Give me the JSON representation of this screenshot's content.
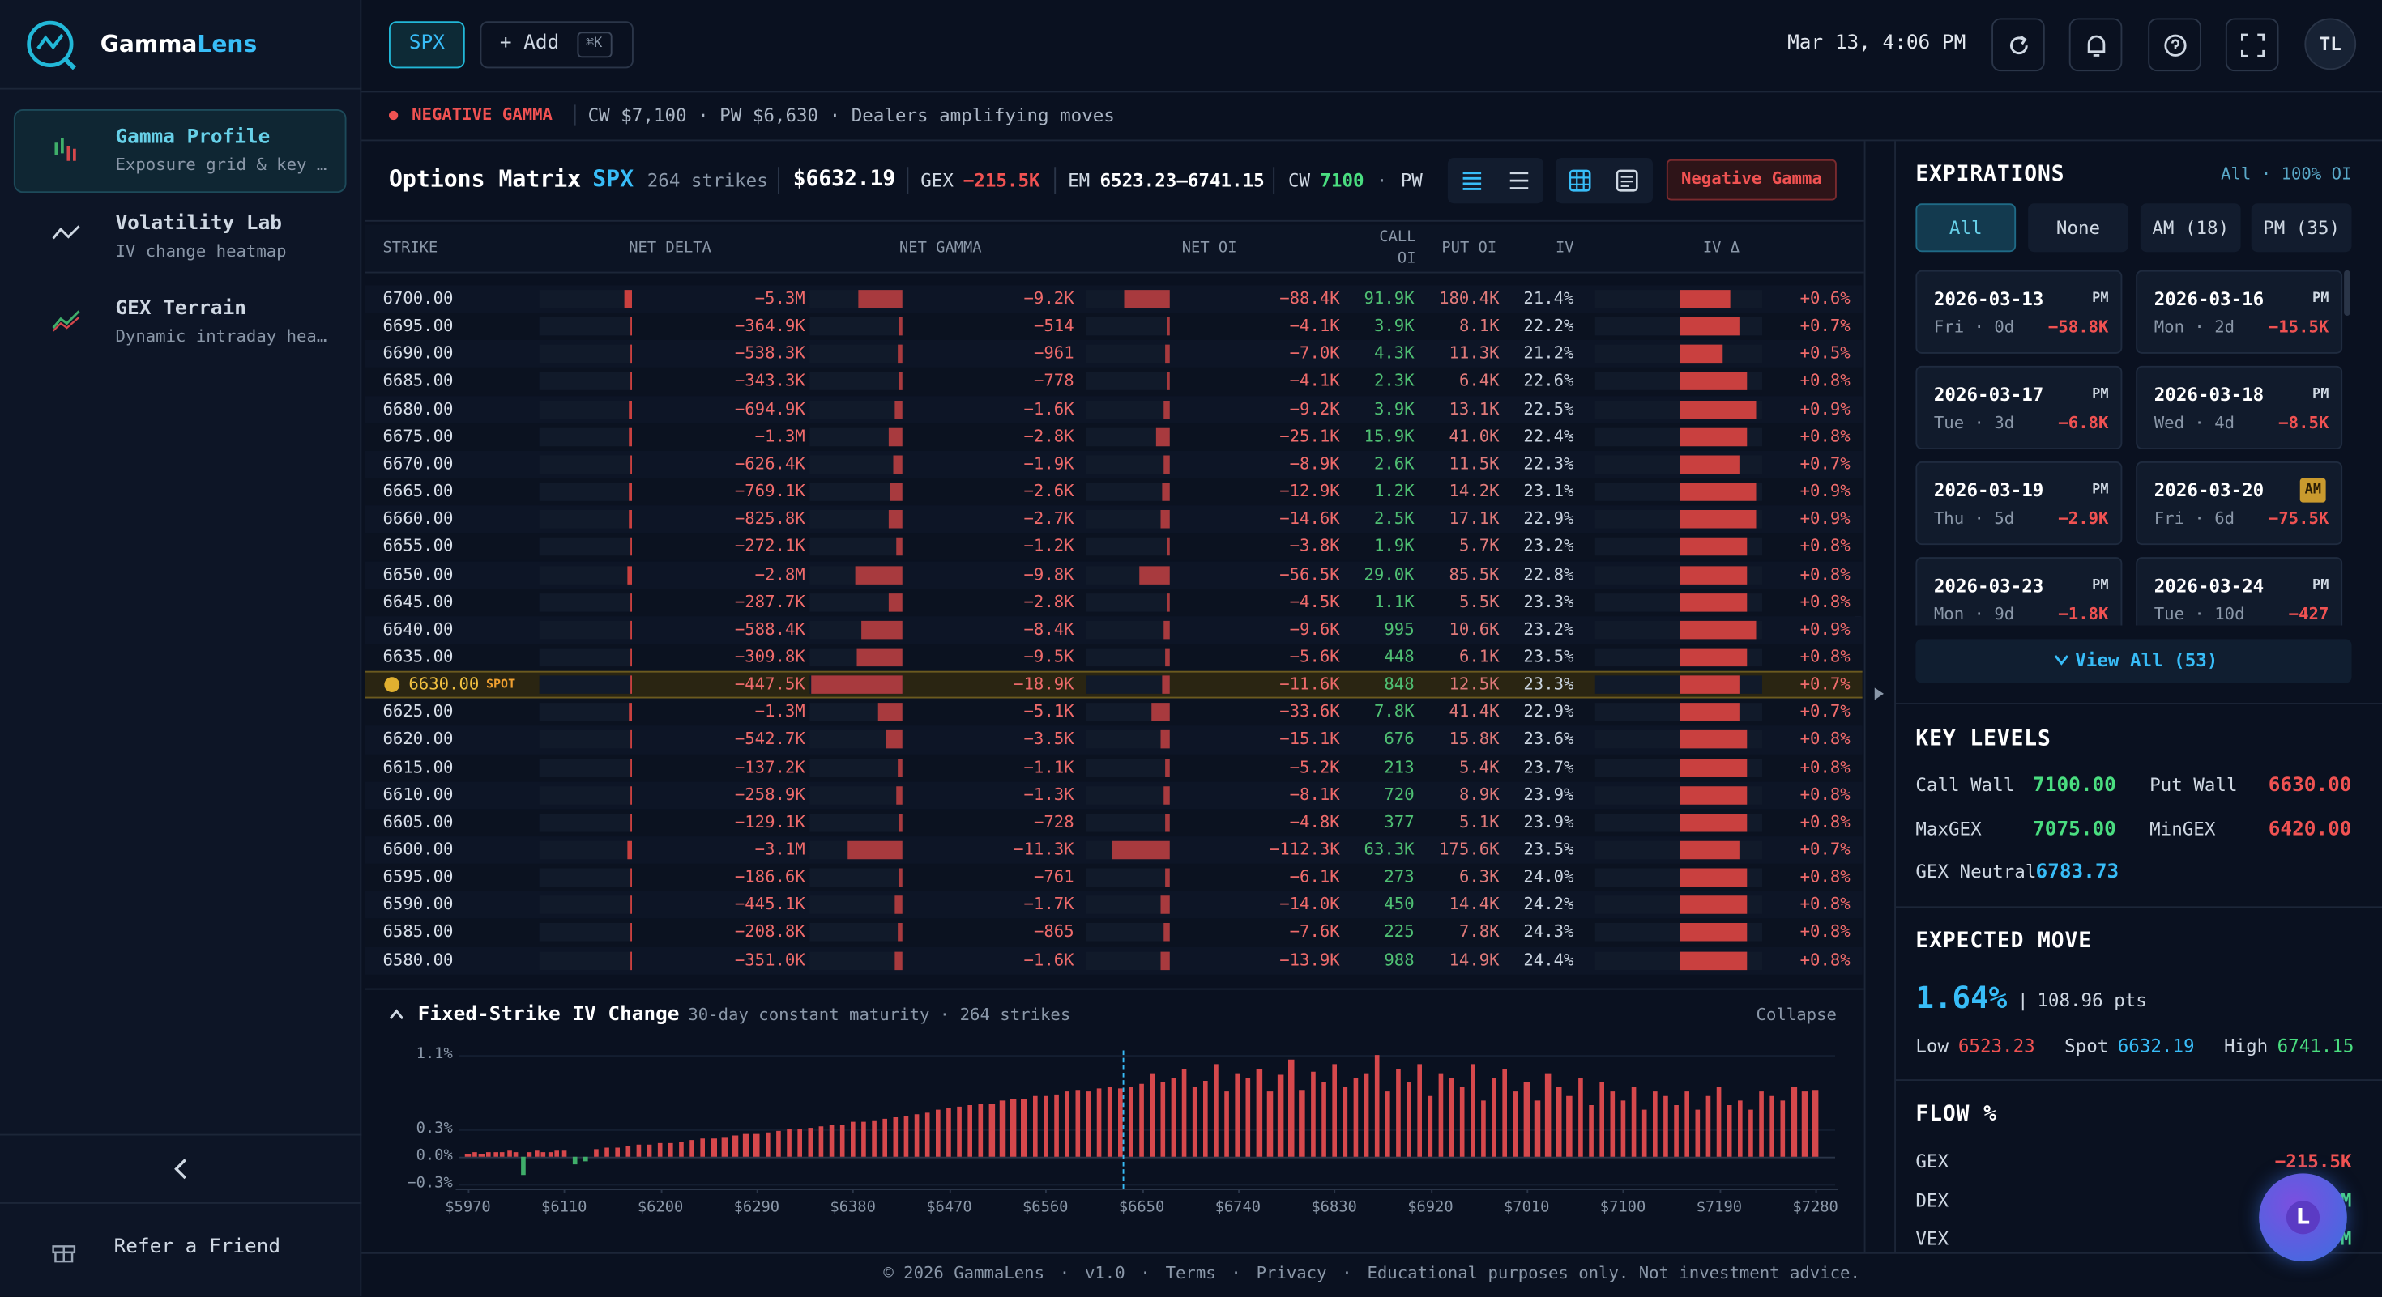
{
  "sidebar": {
    "brand": [
      "Gamma",
      "Lens"
    ],
    "nav": [
      {
        "title": "Gamma Profile",
        "subtitle": "Exposure grid & key …"
      },
      {
        "title": "Volatility Lab",
        "subtitle": "IV change heatmap"
      },
      {
        "title": "GEX Terrain",
        "subtitle": "Dynamic intraday hea…"
      }
    ],
    "refer": "Refer a Friend"
  },
  "topbar": {
    "symbol": "SPX",
    "add": "+ Add",
    "shortcut": "⌘K",
    "datetime": "Mar 13, 4:06 PM",
    "avatar": "TL"
  },
  "alert": {
    "status": "NEGATIVE GAMMA",
    "details": "CW $7,100 · PW $6,630 · Dealers amplifying moves"
  },
  "matrix": {
    "title": "Options Matrix",
    "symbol": "SPX",
    "strike_count": "264 strikes",
    "price": "$6632.19",
    "gex_label": "GEX",
    "gex": "−215.5K",
    "em_label": "EM",
    "em": "6523.23–6741.15",
    "cw_label": "CW",
    "cw": "7100",
    "separator": "·",
    "pw_label": "PW",
    "regime": "Negative Gamma",
    "columns": [
      "STRIKE",
      "NET DELTA",
      "NET GAMMA",
      "NET OI",
      "CALL OI",
      "PUT OI",
      "IV",
      "IV Δ"
    ],
    "rows": [
      [
        "6700.00",
        "−5.3M",
        "−9.2K",
        "−88.4K",
        "91.9K",
        "180.4K",
        "21.4%",
        "+0.6%"
      ],
      [
        "6695.00",
        "−364.9K",
        "−514",
        "−4.1K",
        "3.9K",
        "8.1K",
        "22.2%",
        "+0.7%"
      ],
      [
        "6690.00",
        "−538.3K",
        "−961",
        "−7.0K",
        "4.3K",
        "11.3K",
        "21.2%",
        "+0.5%"
      ],
      [
        "6685.00",
        "−343.3K",
        "−778",
        "−4.1K",
        "2.3K",
        "6.4K",
        "22.6%",
        "+0.8%"
      ],
      [
        "6680.00",
        "−694.9K",
        "−1.6K",
        "−9.2K",
        "3.9K",
        "13.1K",
        "22.5%",
        "+0.9%"
      ],
      [
        "6675.00",
        "−1.3M",
        "−2.8K",
        "−25.1K",
        "15.9K",
        "41.0K",
        "22.4%",
        "+0.8%"
      ],
      [
        "6670.00",
        "−626.4K",
        "−1.9K",
        "−8.9K",
        "2.6K",
        "11.5K",
        "22.3%",
        "+0.7%"
      ],
      [
        "6665.00",
        "−769.1K",
        "−2.6K",
        "−12.9K",
        "1.2K",
        "14.2K",
        "23.1%",
        "+0.9%"
      ],
      [
        "6660.00",
        "−825.8K",
        "−2.7K",
        "−14.6K",
        "2.5K",
        "17.1K",
        "22.9%",
        "+0.9%"
      ],
      [
        "6655.00",
        "−272.1K",
        "−1.2K",
        "−3.8K",
        "1.9K",
        "5.7K",
        "23.2%",
        "+0.8%"
      ],
      [
        "6650.00",
        "−2.8M",
        "−9.8K",
        "−56.5K",
        "29.0K",
        "85.5K",
        "22.8%",
        "+0.8%"
      ],
      [
        "6645.00",
        "−287.7K",
        "−2.8K",
        "−4.5K",
        "1.1K",
        "5.5K",
        "23.3%",
        "+0.8%"
      ],
      [
        "6640.00",
        "−588.4K",
        "−8.4K",
        "−9.6K",
        "995",
        "10.6K",
        "23.2%",
        "+0.9%"
      ],
      [
        "6635.00",
        "−309.8K",
        "−9.5K",
        "−5.6K",
        "448",
        "6.1K",
        "23.5%",
        "+0.8%"
      ],
      [
        "6630.00",
        "−447.5K",
        "−18.9K",
        "−11.6K",
        "848",
        "12.5K",
        "23.3%",
        "+0.7%",
        "SPOT"
      ],
      [
        "6625.00",
        "−1.3M",
        "−5.1K",
        "−33.6K",
        "7.8K",
        "41.4K",
        "22.9%",
        "+0.7%"
      ],
      [
        "6620.00",
        "−542.7K",
        "−3.5K",
        "−15.1K",
        "676",
        "15.8K",
        "23.6%",
        "+0.8%"
      ],
      [
        "6615.00",
        "−137.2K",
        "−1.1K",
        "−5.2K",
        "213",
        "5.4K",
        "23.7%",
        "+0.8%"
      ],
      [
        "6610.00",
        "−258.9K",
        "−1.3K",
        "−8.1K",
        "720",
        "8.9K",
        "23.9%",
        "+0.8%"
      ],
      [
        "6605.00",
        "−129.1K",
        "−728",
        "−4.8K",
        "377",
        "5.1K",
        "23.9%",
        "+0.8%"
      ],
      [
        "6600.00",
        "−3.1M",
        "−11.3K",
        "−112.3K",
        "63.3K",
        "175.6K",
        "23.5%",
        "+0.7%"
      ],
      [
        "6595.00",
        "−186.6K",
        "−761",
        "−6.1K",
        "273",
        "6.3K",
        "24.0%",
        "+0.8%"
      ],
      [
        "6590.00",
        "−445.1K",
        "−1.7K",
        "−14.0K",
        "450",
        "14.4K",
        "24.2%",
        "+0.8%"
      ],
      [
        "6585.00",
        "−208.8K",
        "−865",
        "−7.6K",
        "225",
        "7.8K",
        "24.3%",
        "+0.8%"
      ],
      [
        "6580.00",
        "−351.0K",
        "−1.6K",
        "−13.9K",
        "988",
        "14.9K",
        "24.4%",
        "+0.8%"
      ]
    ]
  },
  "chart_data": {
    "type": "bar",
    "title": "Fixed-Strike IV Change",
    "subtitle": "30-day constant maturity · 264 strikes",
    "collapse": "Collapse",
    "x": [
      5970,
      5980,
      5990,
      6000,
      6010,
      6020,
      6030,
      6040,
      6050,
      6060,
      6070,
      6080,
      6090,
      6100,
      6110,
      6120,
      6130,
      6140,
      6150,
      6160,
      6170,
      6180,
      6190,
      6200,
      6210,
      6220,
      6230,
      6240,
      6250,
      6260,
      6270,
      6280,
      6290,
      6300,
      6310,
      6320,
      6330,
      6340,
      6350,
      6360,
      6370,
      6380,
      6390,
      6400,
      6410,
      6420,
      6430,
      6440,
      6450,
      6460,
      6470,
      6480,
      6490,
      6500,
      6510,
      6520,
      6530,
      6540,
      6550,
      6560,
      6570,
      6580,
      6590,
      6600,
      6610,
      6620,
      6630,
      6640,
      6650,
      6660,
      6670,
      6680,
      6690,
      6700,
      6710,
      6720,
      6730,
      6740,
      6750,
      6760,
      6770,
      6780,
      6790,
      6800,
      6810,
      6820,
      6830,
      6840,
      6850,
      6860,
      6870,
      6880,
      6890,
      6900,
      6910,
      6920,
      6930,
      6940,
      6950,
      6960,
      6970,
      6980,
      6990,
      7000,
      7010,
      7020,
      7030,
      7040,
      7050,
      7060,
      7070,
      7080,
      7090,
      7100,
      7110,
      7120,
      7130,
      7140,
      7150,
      7160,
      7170,
      7180,
      7190,
      7200,
      7210,
      7220,
      7230,
      7240,
      7250,
      7260,
      7270,
      7280
    ],
    "values": [
      0.03,
      0.04,
      0.03,
      0.05,
      0.04,
      0.05,
      0.06,
      0.05,
      -0.2,
      0.05,
      0.06,
      0.04,
      0.05,
      0.07,
      0.06,
      -0.08,
      -0.06,
      0.08,
      0.09,
      0.1,
      0.11,
      0.12,
      0.12,
      0.14,
      0.15,
      0.16,
      0.18,
      0.19,
      0.2,
      0.21,
      0.22,
      0.24,
      0.25,
      0.26,
      0.28,
      0.29,
      0.3,
      0.31,
      0.33,
      0.34,
      0.35,
      0.37,
      0.38,
      0.4,
      0.41,
      0.43,
      0.44,
      0.46,
      0.47,
      0.5,
      0.52,
      0.54,
      0.55,
      0.57,
      0.58,
      0.6,
      0.62,
      0.63,
      0.65,
      0.66,
      0.68,
      0.7,
      0.72,
      0.7,
      0.74,
      0.75,
      0.73,
      0.76,
      0.78,
      0.9,
      0.8,
      0.85,
      0.95,
      0.75,
      0.82,
      1.0,
      0.7,
      0.9,
      0.85,
      0.95,
      0.7,
      0.88,
      1.05,
      0.72,
      0.92,
      0.8,
      1.0,
      0.75,
      0.85,
      0.9,
      1.1,
      0.7,
      0.95,
      0.8,
      1.0,
      0.65,
      0.9,
      0.85,
      0.75,
      1.0,
      0.6,
      0.85,
      0.95,
      0.7,
      0.8,
      0.6,
      0.9,
      0.75,
      0.65,
      0.85,
      0.55,
      0.8,
      0.7,
      0.6,
      0.75,
      0.5,
      0.7,
      0.65,
      0.55,
      0.7,
      0.5,
      0.65,
      0.75,
      0.55,
      0.6,
      0.5,
      0.7,
      0.65,
      0.6,
      0.75,
      0.7,
      0.72
    ],
    "colors": {
      "positive": "#d6484c",
      "negative": "#3fae6a"
    },
    "spot": 6632.19,
    "xlim": [
      5970,
      7280
    ],
    "xticks": [
      {
        "value": 5970,
        "label": "$5970"
      },
      {
        "value": 6110,
        "label": "$6110"
      },
      {
        "value": 6200,
        "label": "$6200"
      },
      {
        "value": 6290,
        "label": "$6290"
      },
      {
        "value": 6380,
        "label": "$6380"
      },
      {
        "value": 6470,
        "label": "$6470"
      },
      {
        "value": 6560,
        "label": "$6560"
      },
      {
        "value": 6650,
        "label": "$6650"
      },
      {
        "value": 6740,
        "label": "$6740"
      },
      {
        "value": 6830,
        "label": "$6830"
      },
      {
        "value": 6920,
        "label": "$6920"
      },
      {
        "value": 7010,
        "label": "$7010"
      },
      {
        "value": 7100,
        "label": "$7100"
      },
      {
        "value": 7190,
        "label": "$7190"
      },
      {
        "value": 7280,
        "label": "$7280"
      }
    ],
    "ylim": [
      -0.35,
      1.15
    ],
    "yticks": [
      {
        "value": 1.1,
        "label": "1.1%"
      },
      {
        "value": 0.3,
        "label": "0.3%"
      },
      {
        "value": 0,
        "label": "0.0%"
      },
      {
        "value": -0.3,
        "label": "−0.3%"
      }
    ]
  },
  "expirations": {
    "title": "EXPIRATIONS",
    "summary": "All · 100% OI",
    "filters": [
      "All",
      "None",
      "AM (18)",
      "PM (35)"
    ],
    "cards": [
      {
        "date": "2026-03-13",
        "session": "PM",
        "day": "Fri · 0d",
        "gex": "−58.8K",
        "badge": false
      },
      {
        "date": "2026-03-16",
        "session": "PM",
        "day": "Mon · 2d",
        "gex": "−15.5K",
        "badge": false
      },
      {
        "date": "2026-03-17",
        "session": "PM",
        "day": "Tue · 3d",
        "gex": "−6.8K",
        "badge": false
      },
      {
        "date": "2026-03-18",
        "session": "PM",
        "day": "Wed · 4d",
        "gex": "−8.5K",
        "badge": false
      },
      {
        "date": "2026-03-19",
        "session": "PM",
        "day": "Thu · 5d",
        "gex": "−2.9K",
        "badge": false
      },
      {
        "date": "2026-03-20",
        "session": "AM",
        "day": "Fri · 6d",
        "gex": "−75.5K",
        "badge": true
      },
      {
        "date": "2026-03-23",
        "session": "PM",
        "day": "Mon · 9d",
        "gex": "−1.8K",
        "badge": false
      },
      {
        "date": "2026-03-24",
        "session": "PM",
        "day": "Tue · 10d",
        "gex": "−427",
        "badge": false
      }
    ],
    "view_all": "View All (53)"
  },
  "key_levels": {
    "title": "KEY LEVELS",
    "items": [
      {
        "label": "Call Wall",
        "value": "7100.00",
        "color": "#4ade80"
      },
      {
        "label": "Put Wall",
        "value": "6630.00",
        "color": "#f05252"
      },
      {
        "label": "MaxGEX",
        "value": "7075.00",
        "color": "#4ade80"
      },
      {
        "label": "MinGEX",
        "value": "6420.00",
        "color": "#f05252"
      },
      {
        "label": "GEX Neutral",
        "value": "6783.73",
        "color": "#38bdf8"
      }
    ]
  },
  "expected_move": {
    "title": "EXPECTED MOVE",
    "percent": "1.64%",
    "separator": "|",
    "points": "108.96 pts",
    "low_label": "Low",
    "low": "6523.23",
    "spot_label": "Spot",
    "spot": "6632.19",
    "high_label": "High",
    "high": "6741.15"
  },
  "flow": {
    "title": "FLOW %",
    "items": [
      {
        "label": "GEX",
        "value": "−215.5K",
        "color": "#f05252"
      },
      {
        "label": "DEX",
        "value": "M",
        "color": "#4ade80"
      },
      {
        "label": "VEX",
        "value": "M",
        "color": "#4ade80"
      }
    ]
  },
  "assistant": "L",
  "footer": {
    "copyright": "© 2026 GammaLens",
    "separator": "·",
    "version": "v1.0",
    "links": [
      "Terms",
      "Privacy"
    ],
    "disclaimer": "Educational purposes only. Not investment advice."
  }
}
